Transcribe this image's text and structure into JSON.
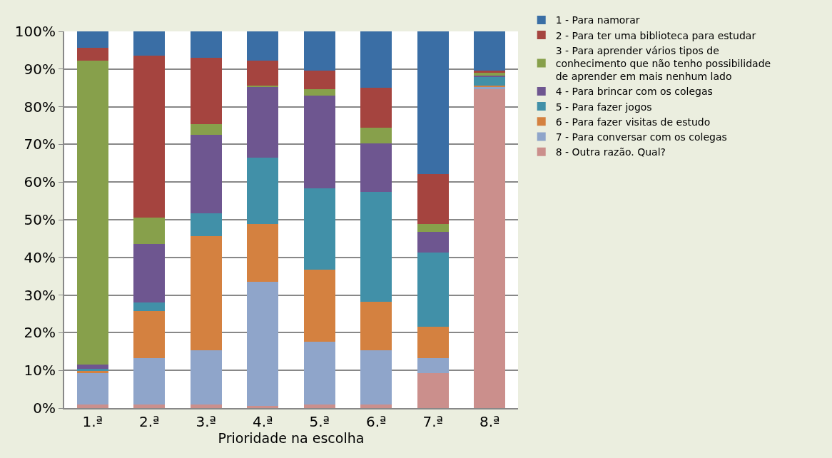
{
  "chart_data": {
    "type": "bar",
    "stacked": true,
    "xlabel": "Prioridade na escolha",
    "categories": [
      "1.ª",
      "2.ª",
      "3.ª",
      "4.ª",
      "5.ª",
      "6.ª",
      "7.ª",
      "8.ª"
    ],
    "series": [
      {
        "name": "8 - Outra razão. Qual?",
        "color": "#cb8f8c",
        "values": [
          1.0,
          1.0,
          1.0,
          0.5,
          1.0,
          1.0,
          9.3,
          84.6
        ]
      },
      {
        "name": "7 - Para conversar com os colegas",
        "color": "#8fa5ca",
        "values": [
          8.3,
          12.2,
          14.4,
          33.0,
          16.6,
          14.4,
          3.9,
          0.6
        ]
      },
      {
        "name": "6 - Para fazer visitas de estudo",
        "color": "#d48140",
        "values": [
          0.5,
          12.6,
          30.3,
          15.4,
          19.2,
          12.8,
          8.3,
          0.5
        ]
      },
      {
        "name": "5 - Para fazer jogos",
        "color": "#4190a8",
        "values": [
          0.7,
          2.3,
          6.0,
          17.6,
          21.5,
          29.2,
          19.7,
          2.2
        ]
      },
      {
        "name": "4 - Para brincar com os colegas",
        "color": "#6e5690",
        "values": [
          1.0,
          15.4,
          20.8,
          18.7,
          24.6,
          12.8,
          5.5,
          0.4
        ]
      },
      {
        "name": "3 - Para aprender vários tipos de conhecimento que não tenho possibilidade de aprender em mais nenhum lado",
        "color": "#87a04b",
        "values": [
          80.8,
          7.1,
          2.8,
          0.5,
          1.7,
          4.2,
          2.2,
          0.7
        ]
      },
      {
        "name": "2 - Para ter uma biblioteca para estudar",
        "color": "#a5443f",
        "values": [
          3.3,
          42.9,
          17.6,
          6.5,
          4.9,
          10.7,
          13.2,
          0.5
        ]
      },
      {
        "name": "1 - Para namorar",
        "color": "#3a6ea5",
        "values": [
          4.4,
          6.5,
          7.1,
          7.8,
          10.5,
          14.9,
          37.9,
          10.5
        ]
      }
    ],
    "ylim": [
      0,
      100
    ],
    "yticks": [
      {
        "value": 0,
        "label": "0%"
      },
      {
        "value": 10,
        "label": "10%"
      },
      {
        "value": 20,
        "label": "20%"
      },
      {
        "value": 30,
        "label": "30%"
      },
      {
        "value": 40,
        "label": "40%"
      },
      {
        "value": 50,
        "label": "50%"
      },
      {
        "value": 60,
        "label": "60%"
      },
      {
        "value": 70,
        "label": "70%"
      },
      {
        "value": 80,
        "label": "80%"
      },
      {
        "value": 90,
        "label": "90%"
      },
      {
        "value": 100,
        "label": "100%"
      }
    ],
    "grid": "y",
    "legend": "right"
  }
}
